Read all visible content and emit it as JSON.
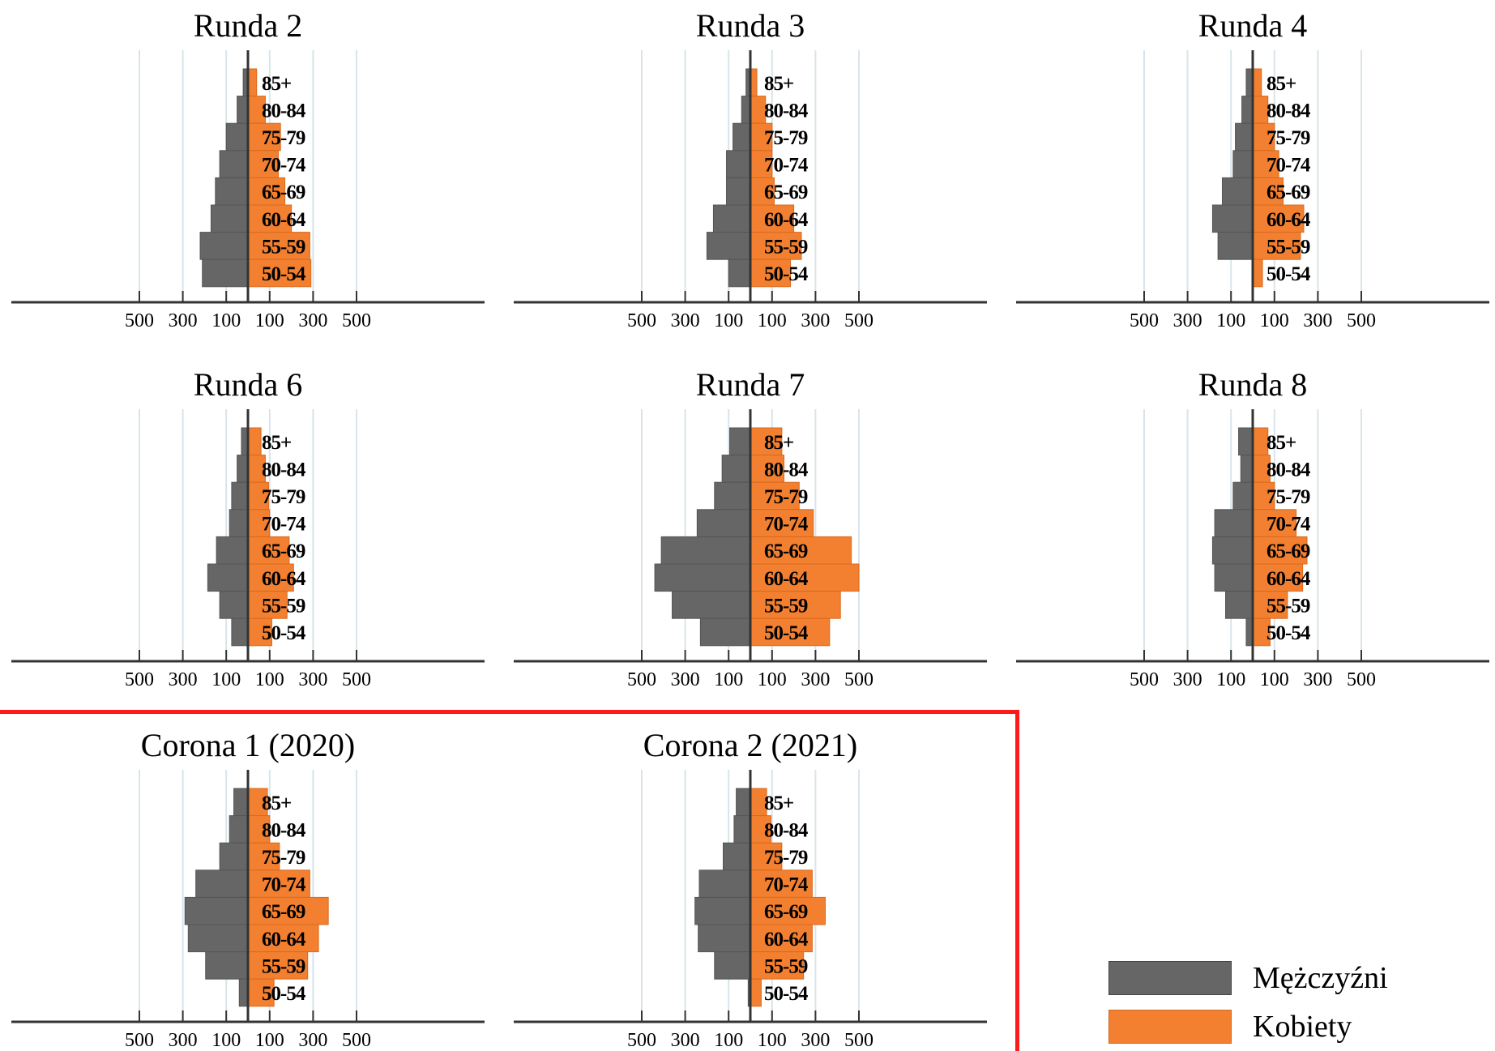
{
  "colors": {
    "men": "#666666",
    "women": "#F28030",
    "axis": "#333333",
    "grid": "#D9E4EA",
    "highlight": "#FF1A1A"
  },
  "legend": [
    {
      "label": "Mężczyźni",
      "color": "#666666"
    },
    {
      "label": "Kobiety",
      "color": "#F28030"
    }
  ],
  "chart_data": [
    {
      "type": "bar",
      "title": "Runda 2",
      "orientation": "horizontal-pyramid",
      "categories": [
        "85+",
        "80-84",
        "75-79",
        "70-74",
        "65-69",
        "60-64",
        "55-59",
        "50-54"
      ],
      "series": [
        {
          "name": "Mężczyźni",
          "values": [
            22,
            50,
            100,
            130,
            150,
            170,
            220,
            210
          ]
        },
        {
          "name": "Kobiety",
          "values": [
            40,
            80,
            150,
            140,
            170,
            200,
            285,
            290
          ]
        }
      ],
      "xticks": [
        "500",
        "300",
        "100",
        "100",
        "300",
        "500"
      ],
      "xlim": [
        -550,
        550
      ],
      "grid": true
    },
    {
      "type": "bar",
      "title": "Runda 3",
      "orientation": "horizontal-pyramid",
      "categories": [
        "85+",
        "80-84",
        "75-79",
        "70-74",
        "65-69",
        "60-64",
        "55-59",
        "50-54"
      ],
      "series": [
        {
          "name": "Mężczyźni",
          "values": [
            20,
            40,
            80,
            110,
            110,
            170,
            200,
            100
          ]
        },
        {
          "name": "Kobiety",
          "values": [
            30,
            70,
            100,
            100,
            110,
            200,
            235,
            185
          ]
        }
      ],
      "xticks": [
        "500",
        "300",
        "100",
        "100",
        "300",
        "500"
      ],
      "xlim": [
        -550,
        550
      ],
      "grid": true
    },
    {
      "type": "bar",
      "title": "Runda 4",
      "orientation": "horizontal-pyramid",
      "categories": [
        "85+",
        "80-84",
        "75-79",
        "70-74",
        "65-69",
        "60-64",
        "55-59",
        "50-54"
      ],
      "series": [
        {
          "name": "Mężczyźni",
          "values": [
            30,
            50,
            80,
            90,
            140,
            185,
            160,
            0
          ]
        },
        {
          "name": "Kobiety",
          "values": [
            40,
            70,
            100,
            120,
            140,
            235,
            220,
            45
          ]
        }
      ],
      "xticks": [
        "500",
        "300",
        "100",
        "100",
        "300",
        "500"
      ],
      "xlim": [
        -550,
        550
      ],
      "grid": true
    },
    {
      "type": "bar",
      "title": "Runda 6",
      "orientation": "horizontal-pyramid",
      "categories": [
        "85+",
        "80-84",
        "75-79",
        "70-74",
        "65-69",
        "60-64",
        "55-59",
        "50-54"
      ],
      "series": [
        {
          "name": "Mężczyźni",
          "values": [
            30,
            50,
            75,
            85,
            145,
            185,
            130,
            75
          ]
        },
        {
          "name": "Kobiety",
          "values": [
            60,
            80,
            95,
            100,
            190,
            210,
            180,
            110
          ]
        }
      ],
      "xticks": [
        "500",
        "300",
        "100",
        "100",
        "300",
        "500"
      ],
      "xlim": [
        -550,
        550
      ],
      "grid": true
    },
    {
      "type": "bar",
      "title": "Runda 7",
      "orientation": "horizontal-pyramid",
      "categories": [
        "85+",
        "80-84",
        "75-79",
        "70-74",
        "65-69",
        "60-64",
        "55-59",
        "50-54"
      ],
      "series": [
        {
          "name": "Mężczyźni",
          "values": [
            95,
            130,
            165,
            245,
            410,
            440,
            360,
            230
          ]
        },
        {
          "name": "Kobiety",
          "values": [
            145,
            155,
            225,
            290,
            465,
            500,
            415,
            365
          ]
        }
      ],
      "xticks": [
        "500",
        "300",
        "100",
        "100",
        "300",
        "500"
      ],
      "xlim": [
        -550,
        550
      ],
      "grid": true
    },
    {
      "type": "bar",
      "title": "Runda 8",
      "orientation": "horizontal-pyramid",
      "categories": [
        "85+",
        "80-84",
        "75-79",
        "70-74",
        "65-69",
        "60-64",
        "55-59",
        "50-54"
      ],
      "series": [
        {
          "name": "Mężczyźni",
          "values": [
            65,
            55,
            90,
            175,
            185,
            175,
            125,
            30
          ]
        },
        {
          "name": "Kobiety",
          "values": [
            70,
            80,
            100,
            200,
            250,
            230,
            160,
            80
          ]
        }
      ],
      "xticks": [
        "500",
        "300",
        "100",
        "100",
        "300",
        "500"
      ],
      "xlim": [
        -550,
        550
      ],
      "grid": true
    },
    {
      "type": "bar",
      "title": "Corona 1 (2020)",
      "orientation": "horizontal-pyramid",
      "categories": [
        "85+",
        "80-84",
        "75-79",
        "70-74",
        "65-69",
        "60-64",
        "55-59",
        "50-54"
      ],
      "series": [
        {
          "name": "Mężczyźni",
          "values": [
            65,
            85,
            130,
            240,
            290,
            275,
            195,
            40
          ]
        },
        {
          "name": "Kobiety",
          "values": [
            90,
            100,
            145,
            285,
            370,
            325,
            275,
            120
          ]
        }
      ],
      "xticks": [
        "500",
        "300",
        "100",
        "100",
        "300",
        "500"
      ],
      "xlim": [
        -550,
        550
      ],
      "grid": true
    },
    {
      "type": "bar",
      "title": "Corona 2 (2021)",
      "orientation": "horizontal-pyramid",
      "categories": [
        "85+",
        "80-84",
        "75-79",
        "70-74",
        "65-69",
        "60-64",
        "55-59",
        "50-54"
      ],
      "series": [
        {
          "name": "Mężczyźni",
          "values": [
            65,
            75,
            125,
            235,
            255,
            240,
            165,
            10
          ]
        },
        {
          "name": "Kobiety",
          "values": [
            75,
            95,
            145,
            285,
            345,
            285,
            245,
            50
          ]
        }
      ],
      "xticks": [
        "500",
        "300",
        "100",
        "100",
        "300",
        "500"
      ],
      "xlim": [
        -550,
        550
      ],
      "grid": true
    }
  ]
}
